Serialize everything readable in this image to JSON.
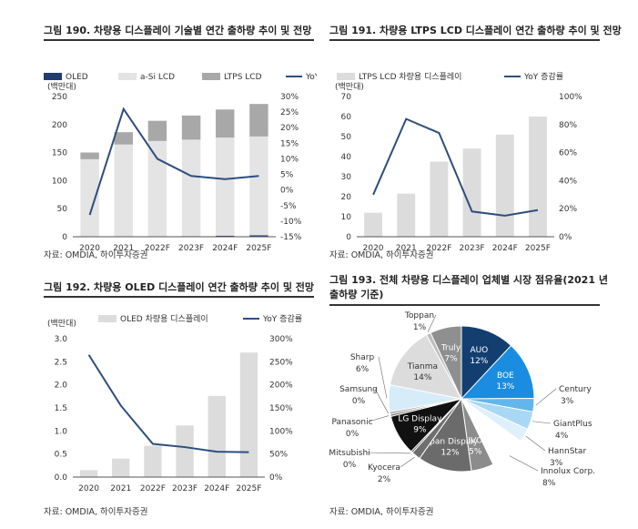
{
  "chart_data": [
    {
      "type": "bar",
      "title": "그림 190. 차량용 디스플레이 기술별 연간 출하량 추이 및 전망",
      "unit_label": "(백만대)",
      "categories": [
        "2020",
        "2021",
        "2022F",
        "2023F",
        "2024F",
        "2025F"
      ],
      "series": [
        {
          "name": "OLED",
          "type": "stacked-bar",
          "color": "#1f3e6e",
          "values": [
            0.2,
            0.4,
            0.7,
            1.1,
            1.8,
            2.7
          ]
        },
        {
          "name": "a-Si LCD",
          "type": "stacked-bar",
          "color": "#e4e4e4",
          "values": [
            138,
            164,
            170,
            172,
            175,
            176
          ]
        },
        {
          "name": "LTPS LCD",
          "type": "stacked-bar",
          "color": "#a8a8a8",
          "values": [
            12,
            22,
            36,
            43,
            50,
            58
          ]
        },
        {
          "name": "YoY",
          "type": "line",
          "axis": "right",
          "color": "#2d4e7e",
          "values": [
            -8,
            26,
            10,
            4.5,
            3.5,
            4.5
          ]
        }
      ],
      "ylim": [
        0,
        250
      ],
      "yticks": [
        0,
        50,
        100,
        150,
        200,
        250
      ],
      "y2lim": [
        -15,
        30
      ],
      "y2ticks": [
        "-15%",
        "-10%",
        "-5%",
        "0%",
        "5%",
        "10%",
        "15%",
        "20%",
        "25%",
        "30%"
      ],
      "source": "자료: OMDIA, 하이투자증권"
    },
    {
      "type": "bar",
      "title": "그림 191. 차량용 LTPS LCD 디스플레이 연간 출하량 추이 및 전망",
      "unit_label": "(백만대)",
      "categories": [
        "2020",
        "2021",
        "2022F",
        "2023F",
        "2024F",
        "2025F"
      ],
      "series": [
        {
          "name": "LTPS LCD 차량용 디스플레이",
          "type": "bar",
          "color": "#dcdcdc",
          "values": [
            12,
            21.5,
            37.5,
            44,
            51,
            60
          ]
        },
        {
          "name": "YoY 증감률",
          "type": "line",
          "axis": "right",
          "color": "#2d4e7e",
          "values": [
            30,
            84,
            74,
            18,
            15,
            19
          ]
        }
      ],
      "ylim": [
        0,
        70
      ],
      "yticks": [
        0,
        10,
        20,
        30,
        40,
        50,
        60,
        70
      ],
      "y2lim": [
        0,
        100
      ],
      "y2ticks": [
        "0%",
        "20%",
        "40%",
        "60%",
        "80%",
        "100%"
      ],
      "source": "자료: OMDIA, 하이투자증권"
    },
    {
      "type": "bar",
      "title": "그림 192. 차량용 OLED 디스플레이 연간 출하량 추이 및 전망",
      "unit_label": "(백만대)",
      "categories": [
        "2020",
        "2021",
        "2022F",
        "2023F",
        "2024F",
        "2025F"
      ],
      "series": [
        {
          "name": "OLED 차량용 디스플레이",
          "type": "bar",
          "color": "#dcdcdc",
          "values": [
            0.15,
            0.4,
            0.68,
            1.12,
            1.76,
            2.7
          ]
        },
        {
          "name": "YoY 증감률",
          "type": "line",
          "axis": "right",
          "color": "#2d4e7e",
          "values": [
            265,
            155,
            72,
            65,
            55,
            54
          ]
        }
      ],
      "ylim": [
        0,
        3.0
      ],
      "yticks": [
        "0.0",
        "0.5",
        "1.0",
        "1.5",
        "2.0",
        "2.5",
        "3.0"
      ],
      "y2lim": [
        0,
        300
      ],
      "y2ticks": [
        "0%",
        "50%",
        "100%",
        "150%",
        "200%",
        "250%",
        "300%"
      ],
      "source": "자료: OMDIA, 하이투자증권"
    },
    {
      "type": "pie",
      "title_lines": [
        "그림 193. 전체 차량용 디스플레이 업체별 시장 점유율(2021 년",
        "출하량 기준)"
      ],
      "slices": [
        {
          "label": "AUO",
          "value": "12%",
          "share": 12,
          "color": "#123f70",
          "inside": true
        },
        {
          "label": "BOE",
          "value": "13%",
          "share": 13,
          "color": "#1a8de0",
          "inside": true
        },
        {
          "label": "Century",
          "value": "3%",
          "share": 3,
          "color": "#62b6ec"
        },
        {
          "label": "GiantPlus",
          "value": "4%",
          "share": 4,
          "color": "#a9d8f5"
        },
        {
          "label": "HannStar",
          "value": "3%",
          "share": 3,
          "color": "#ddf0fb"
        },
        {
          "label": "Innolux Corp.",
          "value": "8%",
          "share": 8,
          "color": "#ffffff"
        },
        {
          "label": "IVO",
          "value": "5%",
          "share": 5,
          "color": "#8c8c8c",
          "inside": true
        },
        {
          "label": "Japan Display",
          "value": "12%",
          "share": 12,
          "color": "#6b6b6b",
          "inside": true
        },
        {
          "label": "Kyocera",
          "value": "2%",
          "share": 2,
          "color": "#6e6e6e"
        },
        {
          "label": "Mitsubishi",
          "value": "0%",
          "share": 0.4,
          "color": "#555555"
        },
        {
          "label": "LG Display",
          "value": "9%",
          "share": 9,
          "color": "#111111",
          "inside": true
        },
        {
          "label": "Panasonic",
          "value": "0%",
          "share": 0.5,
          "color": "#777777"
        },
        {
          "label": "Samsung",
          "value": "0%",
          "share": 0.5,
          "color": "#999999"
        },
        {
          "label": "Sharp",
          "value": "6%",
          "share": 6,
          "color": "#d6ecf9"
        },
        {
          "label": "Tianma",
          "value": "14%",
          "share": 14,
          "color": "#dcdcdc",
          "inside": true
        },
        {
          "label": "Toppan",
          "value": "1%",
          "share": 1,
          "color": "#bdbdbd"
        },
        {
          "label": "Truly",
          "value": "7%",
          "share": 7,
          "color": "#8f8f8f",
          "inside": true
        }
      ],
      "source": "자료: OMDIA, 하이투자증권"
    }
  ]
}
